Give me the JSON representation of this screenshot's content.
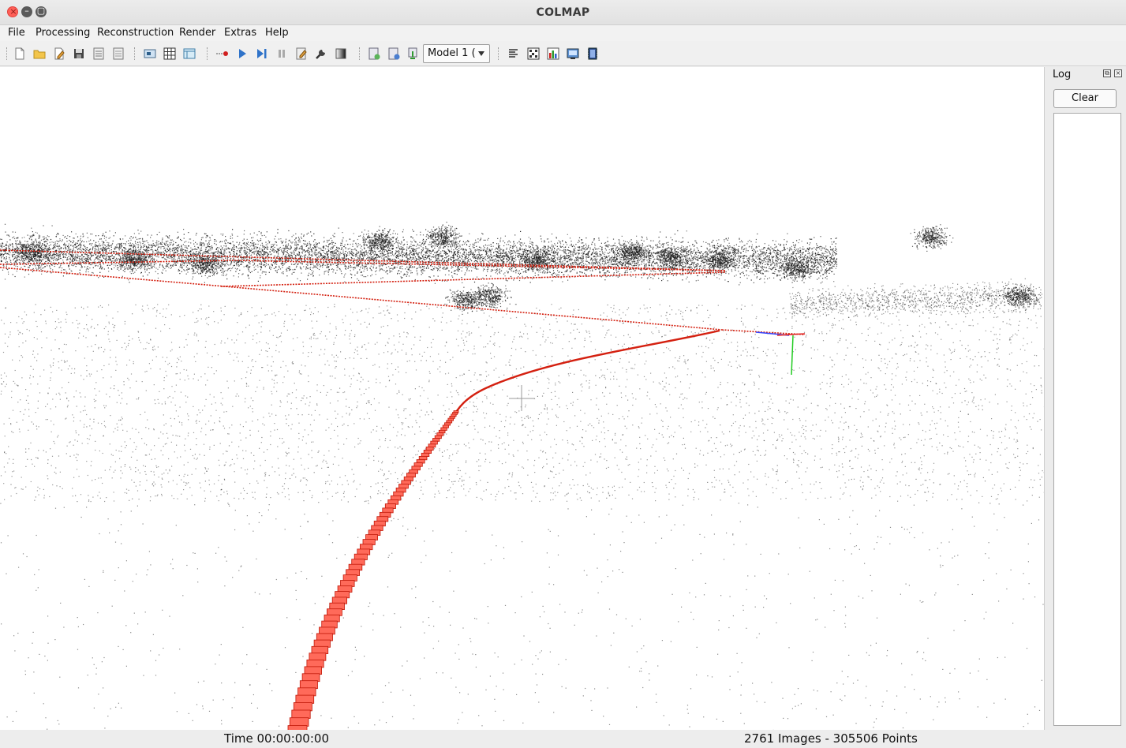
{
  "window": {
    "title": "COLMAP"
  },
  "menu": {
    "items": [
      "File",
      "Processing",
      "Reconstruction",
      "Render",
      "Extras",
      "Help"
    ]
  },
  "toolbar": {
    "icons": [
      "new-project-icon",
      "open-project-icon",
      "edit-project-icon",
      "save-project-icon",
      "import-model-icon",
      "export-model-icon",
      "feature-extraction-icon",
      "feature-matching-icon",
      "database-management-icon",
      "automatic-reconstruction-icon",
      "start-reconstruction-icon",
      "step-reconstruction-icon",
      "pause-reconstruction-icon",
      "reconstruction-options-icon",
      "bundle-adjustment-icon",
      "dense-reconstruction-icon",
      "render-options-icon",
      "render-grab-icon",
      "render-reset-icon",
      "log-icon",
      "match-matrix-icon",
      "model-statistics-icon",
      "grab-image-icon",
      "grab-movie-icon"
    ],
    "model_select": {
      "value": "Model 1 ("
    }
  },
  "viewport": {
    "trajectory_color": "#d42010",
    "points_color": "#1a1a1a",
    "axes": {
      "x_color": "#e02020",
      "y_color": "#22cc22",
      "z_color": "#3344ff"
    }
  },
  "log_dock": {
    "title": "Log",
    "clear_label": "Clear"
  },
  "status": {
    "time": "Time 00:00:00:00",
    "counts": "2761 Images - 305506 Points"
  }
}
